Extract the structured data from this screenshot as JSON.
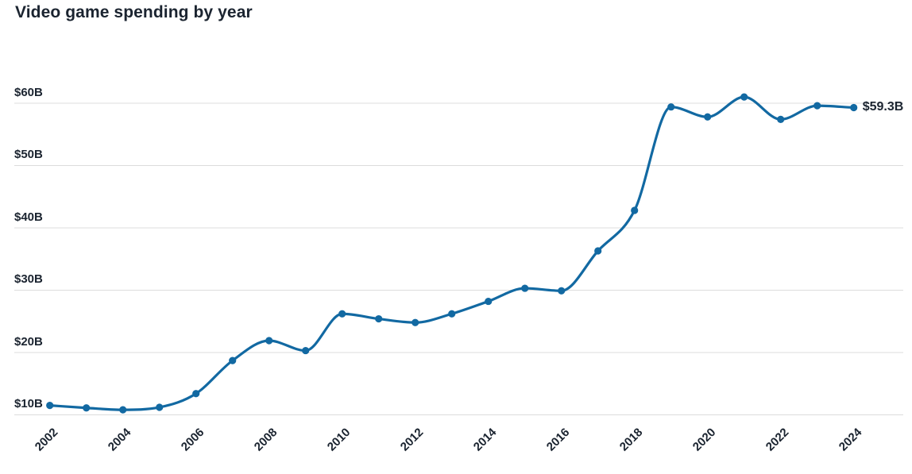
{
  "page": {
    "title": "Video game spending by year"
  },
  "chart_data": {
    "type": "line",
    "title": "Video game spending by year",
    "unit": "billions USD per year",
    "x": [
      2002,
      2003,
      2004,
      2005,
      2006,
      2007,
      2008,
      2009,
      2010,
      2011,
      2012,
      2013,
      2014,
      2015,
      2016,
      2017,
      2018,
      2019,
      2020,
      2021,
      2022,
      2023,
      2024
    ],
    "values": [
      11.5,
      11.1,
      10.8,
      11.2,
      13.4,
      18.7,
      21.9,
      20.3,
      26.2,
      25.4,
      24.8,
      26.2,
      28.2,
      30.3,
      29.9,
      36.3,
      42.8,
      59.4,
      57.8,
      61.0,
      57.4,
      59.6,
      59.3
    ],
    "series_name": "Video game spending",
    "end_label": "$59.3B",
    "y_ticks": [
      {
        "value": 10,
        "label": "$10B"
      },
      {
        "value": 20,
        "label": "$20B"
      },
      {
        "value": 30,
        "label": "$30B"
      },
      {
        "value": 40,
        "label": "$40B"
      },
      {
        "value": 50,
        "label": "$50B"
      },
      {
        "value": 60,
        "label": "$60B"
      }
    ],
    "x_ticks": [
      "2002",
      "2004",
      "2006",
      "2008",
      "2010",
      "2012",
      "2014",
      "2016",
      "2018",
      "2020",
      "2022",
      "2024"
    ],
    "xlabel": "",
    "ylabel": "",
    "ylim": [
      10,
      60
    ],
    "grid": "horizontal",
    "legend": "none",
    "colors": {
      "line": "#1269a2",
      "point": "#1269a2",
      "grid": "#dcdcdc",
      "text": "#1b2430",
      "title": "#1b2430",
      "background": "#ffffff"
    }
  }
}
